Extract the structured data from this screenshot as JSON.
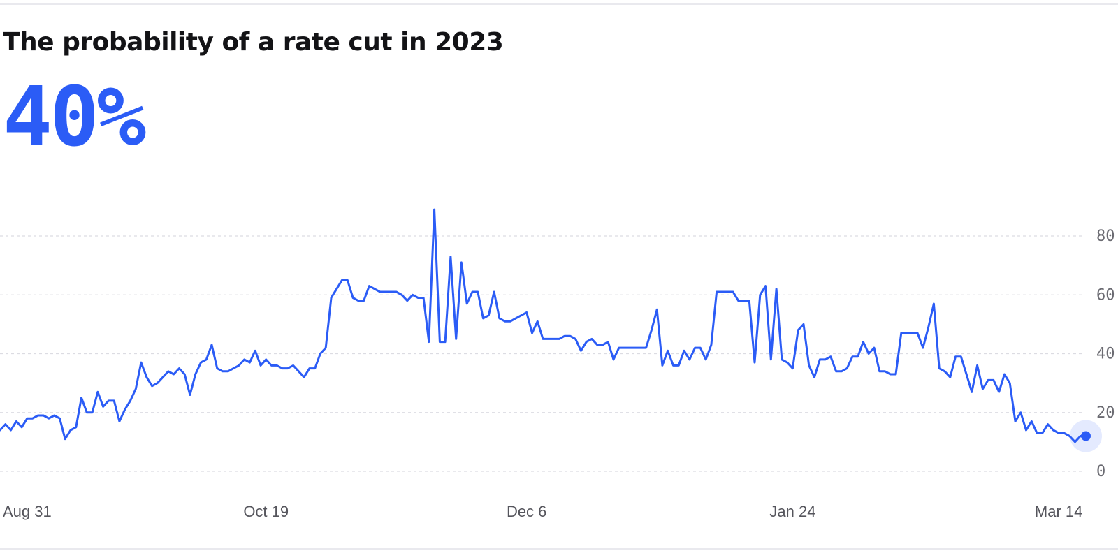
{
  "header": {
    "title": "The probability of a rate cut in 2023",
    "headline_value": "40%"
  },
  "colors": {
    "accent": "#2b5cf6",
    "title": "#131316",
    "axis_text": "#6b6b72",
    "grid": "#dcdce2"
  },
  "chart_data": {
    "type": "line",
    "title": "The probability of a rate cut in 2023",
    "xlabel": "",
    "ylabel": "",
    "ylim": [
      0,
      80
    ],
    "y_ticks": [
      0,
      20,
      40,
      60,
      80
    ],
    "y_tick_labels": [
      "0",
      "20",
      "40",
      "60",
      "80"
    ],
    "x_ticks": [
      {
        "date": "2022-08-31",
        "label": "Aug 31"
      },
      {
        "date": "2022-10-19",
        "label": "Oct 19"
      },
      {
        "date": "2022-12-06",
        "label": "Dec 6"
      },
      {
        "date": "2023-01-24",
        "label": "Jan 24"
      },
      {
        "date": "2023-03-14",
        "label": "Mar 14"
      }
    ],
    "xlim": [
      "2022-08-31",
      "2023-03-19"
    ],
    "grid": "horizontal dashed",
    "legend": "none",
    "end_marker": true,
    "series": [
      {
        "color": "#2b5cf6",
        "points": [
          [
            "2022-08-31",
            14
          ],
          [
            "2022-09-01",
            16
          ],
          [
            "2022-09-02",
            14
          ],
          [
            "2022-09-03",
            17
          ],
          [
            "2022-09-04",
            15
          ],
          [
            "2022-09-05",
            18
          ],
          [
            "2022-09-06",
            18
          ],
          [
            "2022-09-07",
            19
          ],
          [
            "2022-09-08",
            19
          ],
          [
            "2022-09-09",
            18
          ],
          [
            "2022-09-10",
            19
          ],
          [
            "2022-09-11",
            18
          ],
          [
            "2022-09-12",
            11
          ],
          [
            "2022-09-13",
            14
          ],
          [
            "2022-09-14",
            15
          ],
          [
            "2022-09-15",
            25
          ],
          [
            "2022-09-16",
            20
          ],
          [
            "2022-09-17",
            20
          ],
          [
            "2022-09-18",
            27
          ],
          [
            "2022-09-19",
            22
          ],
          [
            "2022-09-20",
            24
          ],
          [
            "2022-09-21",
            24
          ],
          [
            "2022-09-22",
            17
          ],
          [
            "2022-09-23",
            21
          ],
          [
            "2022-09-24",
            24
          ],
          [
            "2022-09-25",
            28
          ],
          [
            "2022-09-26",
            37
          ],
          [
            "2022-09-27",
            32
          ],
          [
            "2022-09-28",
            29
          ],
          [
            "2022-09-29",
            30
          ],
          [
            "2022-09-30",
            32
          ],
          [
            "2022-10-01",
            34
          ],
          [
            "2022-10-02",
            33
          ],
          [
            "2022-10-03",
            35
          ],
          [
            "2022-10-04",
            33
          ],
          [
            "2022-10-05",
            26
          ],
          [
            "2022-10-06",
            33
          ],
          [
            "2022-10-07",
            37
          ],
          [
            "2022-10-08",
            38
          ],
          [
            "2022-10-09",
            43
          ],
          [
            "2022-10-10",
            35
          ],
          [
            "2022-10-11",
            34
          ],
          [
            "2022-10-12",
            34
          ],
          [
            "2022-10-13",
            35
          ],
          [
            "2022-10-14",
            36
          ],
          [
            "2022-10-15",
            38
          ],
          [
            "2022-10-16",
            37
          ],
          [
            "2022-10-17",
            41
          ],
          [
            "2022-10-18",
            36
          ],
          [
            "2022-10-19",
            38
          ],
          [
            "2022-10-20",
            36
          ],
          [
            "2022-10-21",
            36
          ],
          [
            "2022-10-22",
            35
          ],
          [
            "2022-10-23",
            35
          ],
          [
            "2022-10-24",
            36
          ],
          [
            "2022-10-25",
            34
          ],
          [
            "2022-10-26",
            32
          ],
          [
            "2022-10-27",
            35
          ],
          [
            "2022-10-28",
            35
          ],
          [
            "2022-10-29",
            40
          ],
          [
            "2022-10-30",
            42
          ],
          [
            "2022-10-31",
            59
          ],
          [
            "2022-11-01",
            62
          ],
          [
            "2022-11-02",
            65
          ],
          [
            "2022-11-03",
            65
          ],
          [
            "2022-11-04",
            59
          ],
          [
            "2022-11-05",
            58
          ],
          [
            "2022-11-06",
            58
          ],
          [
            "2022-11-07",
            63
          ],
          [
            "2022-11-08",
            62
          ],
          [
            "2022-11-09",
            61
          ],
          [
            "2022-11-10",
            61
          ],
          [
            "2022-11-11",
            61
          ],
          [
            "2022-11-12",
            61
          ],
          [
            "2022-11-13",
            60
          ],
          [
            "2022-11-14",
            58
          ],
          [
            "2022-11-15",
            60
          ],
          [
            "2022-11-16",
            59
          ],
          [
            "2022-11-17",
            59
          ],
          [
            "2022-11-18",
            44
          ],
          [
            "2022-11-19",
            89
          ],
          [
            "2022-11-20",
            44
          ],
          [
            "2022-11-21",
            44
          ],
          [
            "2022-11-22",
            73
          ],
          [
            "2022-11-23",
            45
          ],
          [
            "2022-11-24",
            71
          ],
          [
            "2022-11-25",
            57
          ],
          [
            "2022-11-26",
            61
          ],
          [
            "2022-11-27",
            61
          ],
          [
            "2022-11-28",
            52
          ],
          [
            "2022-11-29",
            53
          ],
          [
            "2022-11-30",
            61
          ],
          [
            "2022-12-01",
            52
          ],
          [
            "2022-12-02",
            51
          ],
          [
            "2022-12-03",
            51
          ],
          [
            "2022-12-04",
            52
          ],
          [
            "2022-12-05",
            53
          ],
          [
            "2022-12-06",
            54
          ],
          [
            "2022-12-07",
            47
          ],
          [
            "2022-12-08",
            51
          ],
          [
            "2022-12-09",
            45
          ],
          [
            "2022-12-10",
            45
          ],
          [
            "2022-12-11",
            45
          ],
          [
            "2022-12-12",
            45
          ],
          [
            "2022-12-13",
            46
          ],
          [
            "2022-12-14",
            46
          ],
          [
            "2022-12-15",
            45
          ],
          [
            "2022-12-16",
            41
          ],
          [
            "2022-12-17",
            44
          ],
          [
            "2022-12-18",
            45
          ],
          [
            "2022-12-19",
            43
          ],
          [
            "2022-12-20",
            43
          ],
          [
            "2022-12-21",
            44
          ],
          [
            "2022-12-22",
            38
          ],
          [
            "2022-12-23",
            42
          ],
          [
            "2022-12-24",
            42
          ],
          [
            "2022-12-25",
            42
          ],
          [
            "2022-12-26",
            42
          ],
          [
            "2022-12-27",
            42
          ],
          [
            "2022-12-28",
            42
          ],
          [
            "2022-12-29",
            48
          ],
          [
            "2022-12-30",
            55
          ],
          [
            "2022-12-31",
            36
          ],
          [
            "2023-01-01",
            41
          ],
          [
            "2023-01-02",
            36
          ],
          [
            "2023-01-03",
            36
          ],
          [
            "2023-01-04",
            41
          ],
          [
            "2023-01-05",
            38
          ],
          [
            "2023-01-06",
            42
          ],
          [
            "2023-01-07",
            42
          ],
          [
            "2023-01-08",
            38
          ],
          [
            "2023-01-09",
            43
          ],
          [
            "2023-01-10",
            61
          ],
          [
            "2023-01-11",
            61
          ],
          [
            "2023-01-12",
            61
          ],
          [
            "2023-01-13",
            61
          ],
          [
            "2023-01-14",
            58
          ],
          [
            "2023-01-15",
            58
          ],
          [
            "2023-01-16",
            58
          ],
          [
            "2023-01-17",
            37
          ],
          [
            "2023-01-18",
            60
          ],
          [
            "2023-01-19",
            63
          ],
          [
            "2023-01-20",
            38
          ],
          [
            "2023-01-21",
            62
          ],
          [
            "2023-01-22",
            38
          ],
          [
            "2023-01-23",
            37
          ],
          [
            "2023-01-24",
            35
          ],
          [
            "2023-01-25",
            48
          ],
          [
            "2023-01-26",
            50
          ],
          [
            "2023-01-27",
            36
          ],
          [
            "2023-01-28",
            32
          ],
          [
            "2023-01-29",
            38
          ],
          [
            "2023-01-30",
            38
          ],
          [
            "2023-01-31",
            39
          ],
          [
            "2023-02-01",
            34
          ],
          [
            "2023-02-02",
            34
          ],
          [
            "2023-02-03",
            35
          ],
          [
            "2023-02-04",
            39
          ],
          [
            "2023-02-05",
            39
          ],
          [
            "2023-02-06",
            44
          ],
          [
            "2023-02-07",
            40
          ],
          [
            "2023-02-08",
            42
          ],
          [
            "2023-02-09",
            34
          ],
          [
            "2023-02-10",
            34
          ],
          [
            "2023-02-11",
            33
          ],
          [
            "2023-02-12",
            33
          ],
          [
            "2023-02-13",
            47
          ],
          [
            "2023-02-14",
            47
          ],
          [
            "2023-02-15",
            47
          ],
          [
            "2023-02-16",
            47
          ],
          [
            "2023-02-17",
            42
          ],
          [
            "2023-02-18",
            49
          ],
          [
            "2023-02-19",
            57
          ],
          [
            "2023-02-20",
            35
          ],
          [
            "2023-02-21",
            34
          ],
          [
            "2023-02-22",
            32
          ],
          [
            "2023-02-23",
            39
          ],
          [
            "2023-02-24",
            39
          ],
          [
            "2023-02-25",
            33
          ],
          [
            "2023-02-26",
            27
          ],
          [
            "2023-02-27",
            36
          ],
          [
            "2023-02-28",
            28
          ],
          [
            "2023-03-01",
            31
          ],
          [
            "2023-03-02",
            31
          ],
          [
            "2023-03-03",
            27
          ],
          [
            "2023-03-04",
            33
          ],
          [
            "2023-03-05",
            30
          ],
          [
            "2023-03-06",
            17
          ],
          [
            "2023-03-07",
            20
          ],
          [
            "2023-03-08",
            14
          ],
          [
            "2023-03-09",
            17
          ],
          [
            "2023-03-10",
            13
          ],
          [
            "2023-03-11",
            13
          ],
          [
            "2023-03-12",
            16
          ],
          [
            "2023-03-13",
            14
          ],
          [
            "2023-03-14",
            13
          ],
          [
            "2023-03-15",
            13
          ],
          [
            "2023-03-16",
            12
          ],
          [
            "2023-03-17",
            10
          ],
          [
            "2023-03-18",
            12
          ],
          [
            "2023-03-19",
            12
          ]
        ]
      }
    ]
  }
}
